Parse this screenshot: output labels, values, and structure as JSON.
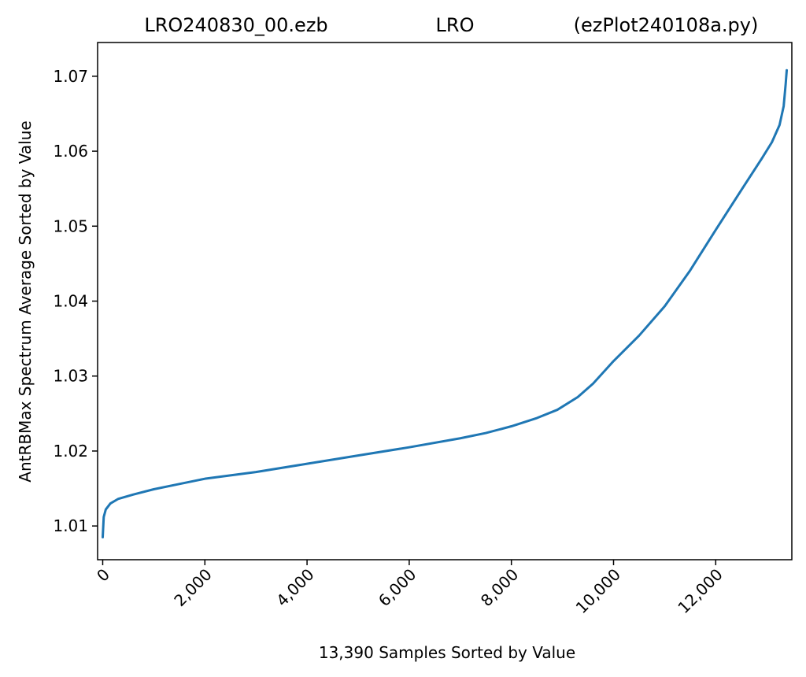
{
  "chart_data": {
    "type": "line",
    "title_parts": {
      "left": "LRO240830_00.ezb",
      "center": "LRO",
      "right": "(ezPlot240108a.py)"
    },
    "xlabel": "13,390 Samples Sorted by Value",
    "ylabel": "AntRBMax Spectrum Average Sorted by Value",
    "xlim": [
      -100,
      13490
    ],
    "ylim": [
      1.0055,
      1.0745
    ],
    "x_ticks": [
      {
        "value": 0,
        "label": "0"
      },
      {
        "value": 2000,
        "label": "2,000"
      },
      {
        "value": 4000,
        "label": "4,000"
      },
      {
        "value": 6000,
        "label": "6,000"
      },
      {
        "value": 8000,
        "label": "8,000"
      },
      {
        "value": 10000,
        "label": "10,000"
      },
      {
        "value": 12000,
        "label": "12,000"
      }
    ],
    "y_ticks": [
      {
        "value": 1.01,
        "label": "1.01"
      },
      {
        "value": 1.02,
        "label": "1.02"
      },
      {
        "value": 1.03,
        "label": "1.03"
      },
      {
        "value": 1.04,
        "label": "1.04"
      },
      {
        "value": 1.05,
        "label": "1.05"
      },
      {
        "value": 1.06,
        "label": "1.06"
      },
      {
        "value": 1.07,
        "label": "1.07"
      }
    ],
    "grid": false,
    "series": [
      {
        "color": "#1f77b4",
        "x": [
          0,
          20,
          60,
          150,
          300,
          600,
          1000,
          1500,
          2000,
          3000,
          4000,
          5000,
          6000,
          7000,
          7500,
          8000,
          8500,
          8900,
          9300,
          9600,
          10000,
          10500,
          11000,
          11500,
          12000,
          12500,
          12900,
          13100,
          13250,
          13330,
          13370,
          13390
        ],
        "y": [
          1.0085,
          1.0112,
          1.0122,
          1.013,
          1.0136,
          1.0142,
          1.0149,
          1.0156,
          1.0163,
          1.0172,
          1.0183,
          1.0194,
          1.0205,
          1.0217,
          1.0224,
          1.0233,
          1.0244,
          1.0255,
          1.0272,
          1.029,
          1.032,
          1.0354,
          1.0393,
          1.0441,
          1.0495,
          1.0548,
          1.059,
          1.0612,
          1.0635,
          1.066,
          1.069,
          1.0708
        ]
      }
    ]
  }
}
